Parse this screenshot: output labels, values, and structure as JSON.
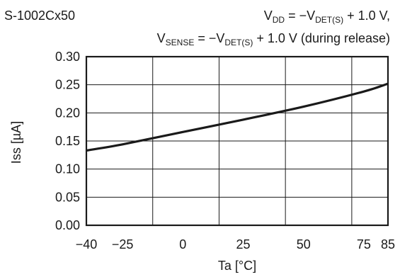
{
  "chart_data": {
    "type": "line",
    "title_left": "S-1002Cx50",
    "condition_line1": {
      "v1_main": "V",
      "v1_sub": "DD",
      "eq1": " = −V",
      "v2_sub": "DET(S)",
      "rest": " + 1.0 V,"
    },
    "condition_line2": {
      "v1_main": "V",
      "v1_sub": "SENSE",
      "eq1": " = −V",
      "v2_sub": "DET(S)",
      "rest": " + 1.0 V (during release)"
    },
    "xlabel": "Ta [°C]",
    "ylabel": "Iss [µA]",
    "xlim": [
      -40,
      85
    ],
    "ylim": [
      0.0,
      0.3
    ],
    "x_ticks": [
      -40,
      -25,
      0,
      25,
      50,
      75,
      85
    ],
    "x_tick_labels": [
      "−40",
      "−25",
      "0",
      "25",
      "50",
      "75",
      "85"
    ],
    "y_ticks": [
      0.0,
      0.05,
      0.1,
      0.15,
      0.2,
      0.25,
      0.3
    ],
    "y_tick_labels": [
      "0.00",
      "0.05",
      "0.10",
      "0.15",
      "0.20",
      "0.25",
      "0.30"
    ],
    "x_grid": [
      -40,
      -12.5,
      15,
      42.5,
      70,
      85
    ],
    "y_grid": [
      0.0,
      0.05,
      0.1,
      0.15,
      0.2,
      0.25,
      0.3
    ],
    "grid": true,
    "series": [
      {
        "x": [
          -40,
          -25,
          0,
          25,
          50,
          75,
          85
        ],
        "y": [
          0.133,
          0.144,
          0.166,
          0.188,
          0.211,
          0.238,
          0.252
        ]
      }
    ]
  }
}
